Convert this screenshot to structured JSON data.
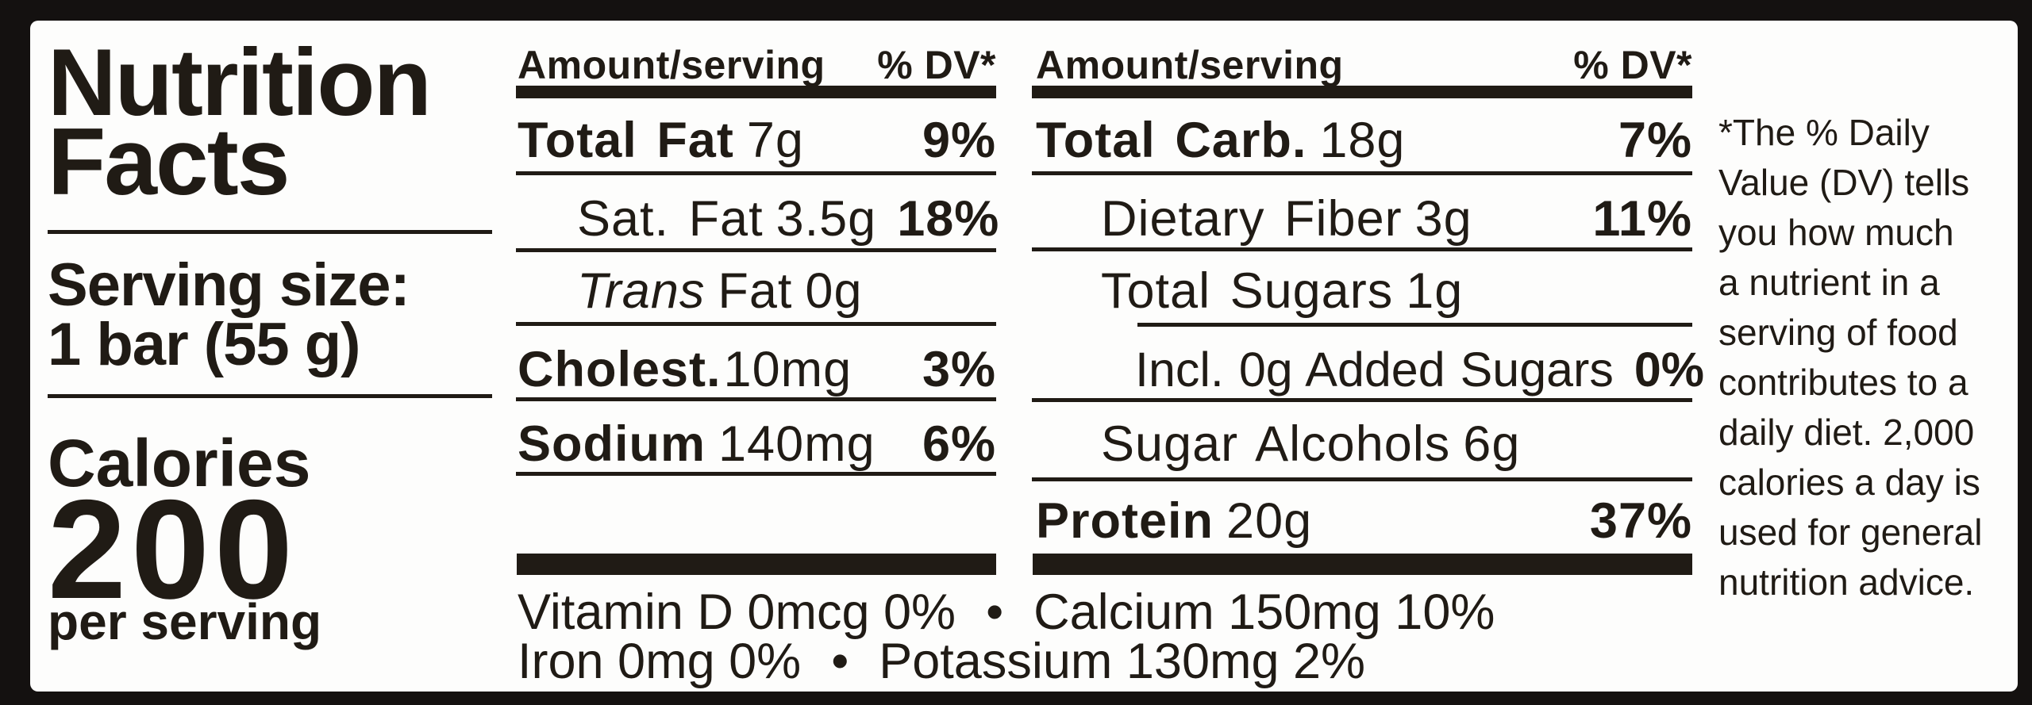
{
  "colors": {
    "ink": "#201b15",
    "paper": "#fdfdfc",
    "frame": "#141110"
  },
  "label": {
    "title": {
      "line1": "Nutrition",
      "line2": "Facts"
    },
    "serving": {
      "label": "Serving size:",
      "value": "1 bar (55 g)"
    },
    "calories": {
      "label": "Calories",
      "value": "200",
      "suffix": "per serving"
    },
    "col_header": {
      "amount": "Amount/serving",
      "dv": "% DV*"
    },
    "mid_rows": [
      {
        "name_b": "Total Fat",
        "qty": "7g",
        "dv": "9%"
      },
      {
        "name_r": "Sat. Fat",
        "qty": "3.5g",
        "dv": "18%"
      },
      {
        "name_i": "Trans",
        "name_r": "Fat",
        "qty": "0g",
        "dv": ""
      },
      {
        "name_b": "Cholest.",
        "qty": "10mg",
        "dv": "3%"
      },
      {
        "name_b": "Sodium",
        "qty": "140mg",
        "dv": "6%"
      }
    ],
    "right_rows": [
      {
        "name_b": "Total Carb.",
        "qty": "18g",
        "dv": "7%"
      },
      {
        "name_r": "Dietary Fiber",
        "qty": "3g",
        "dv": "11%"
      },
      {
        "name_r": "Total Sugars",
        "qty": "1g",
        "dv": ""
      },
      {
        "name_r": "Incl. 0g Added Sugars",
        "qty": "",
        "dv": "0%"
      },
      {
        "name_r": "Sugar Alcohols",
        "qty": "6g",
        "dv": ""
      },
      {
        "name_b": "Protein",
        "qty": "20g",
        "dv": "37%"
      }
    ],
    "micros": {
      "line1": {
        "a": "Vitamin D 0mcg 0%",
        "bullet": "•",
        "b": "Calcium 150mg 10%"
      },
      "line2": {
        "a": "Iron 0mg 0%",
        "bullet": "•",
        "b": "Potassium 130mg 2%"
      }
    },
    "footnote_lines": [
      "*The % Daily",
      "Value (DV) tells",
      "you how much",
      "a nutrient in a",
      "serving of food",
      "contributes to a",
      "daily diet. 2,000",
      "calories a day is",
      "used for general",
      "nutrition advice."
    ]
  }
}
